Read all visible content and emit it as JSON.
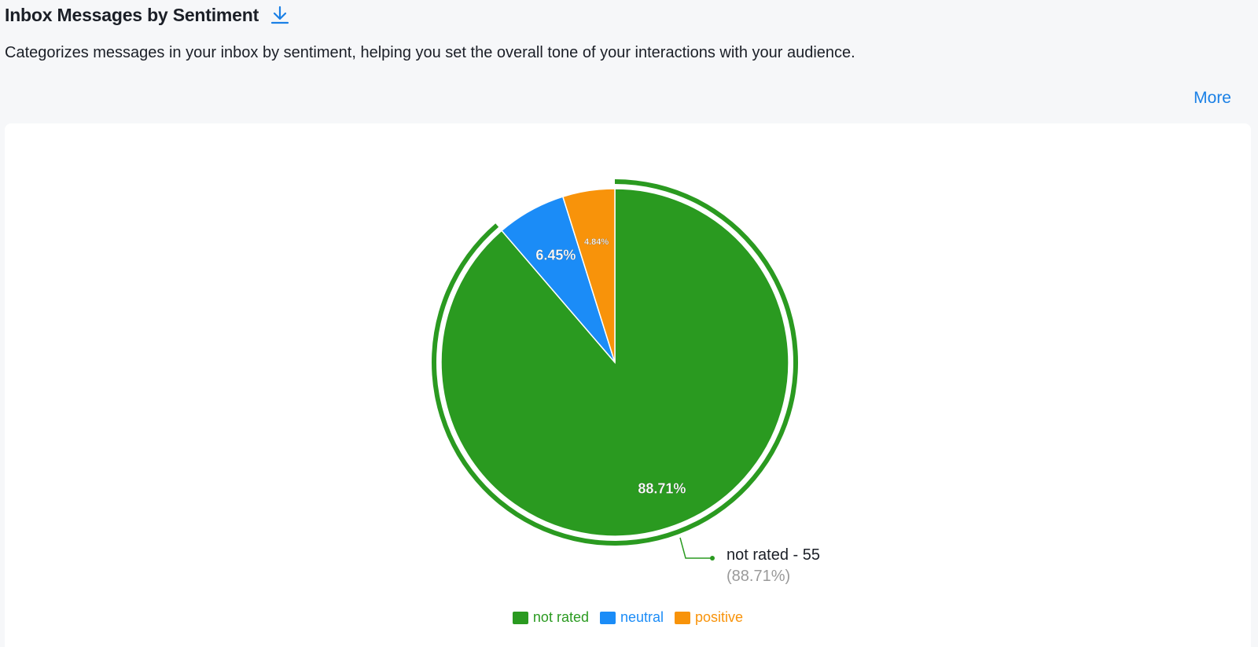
{
  "header": {
    "title": "Inbox Messages by Sentiment",
    "download_icon": "download-icon",
    "description": "Categorizes messages in your inbox by sentiment, helping you set the overall tone of your interactions with your audience.",
    "more_label": "More"
  },
  "colors": {
    "accent": "#1a80e6",
    "not_rated": "#2a9a20",
    "neutral": "#1b8cf7",
    "positive": "#f8930a"
  },
  "chart_data": {
    "type": "pie",
    "title": "",
    "slices": [
      {
        "name": "not rated",
        "value": 55,
        "percent": 88.71,
        "label": "88.71%",
        "color": "#2a9a20"
      },
      {
        "name": "neutral",
        "value": 4,
        "percent": 6.45,
        "label": "6.45%",
        "color": "#1b8cf7"
      },
      {
        "name": "positive",
        "value": 3,
        "percent": 4.84,
        "label": "4.84%",
        "color": "#f8930a"
      }
    ],
    "highlighted_slice": "not rated",
    "tooltip": {
      "line1": "not rated - 55",
      "line2": "(88.71%)"
    },
    "legend": {
      "placement": "bottom-center",
      "items": [
        {
          "label": "not rated",
          "color": "#2a9a20"
        },
        {
          "label": "neutral",
          "color": "#1b8cf7"
        },
        {
          "label": "positive",
          "color": "#f8930a"
        }
      ]
    }
  }
}
